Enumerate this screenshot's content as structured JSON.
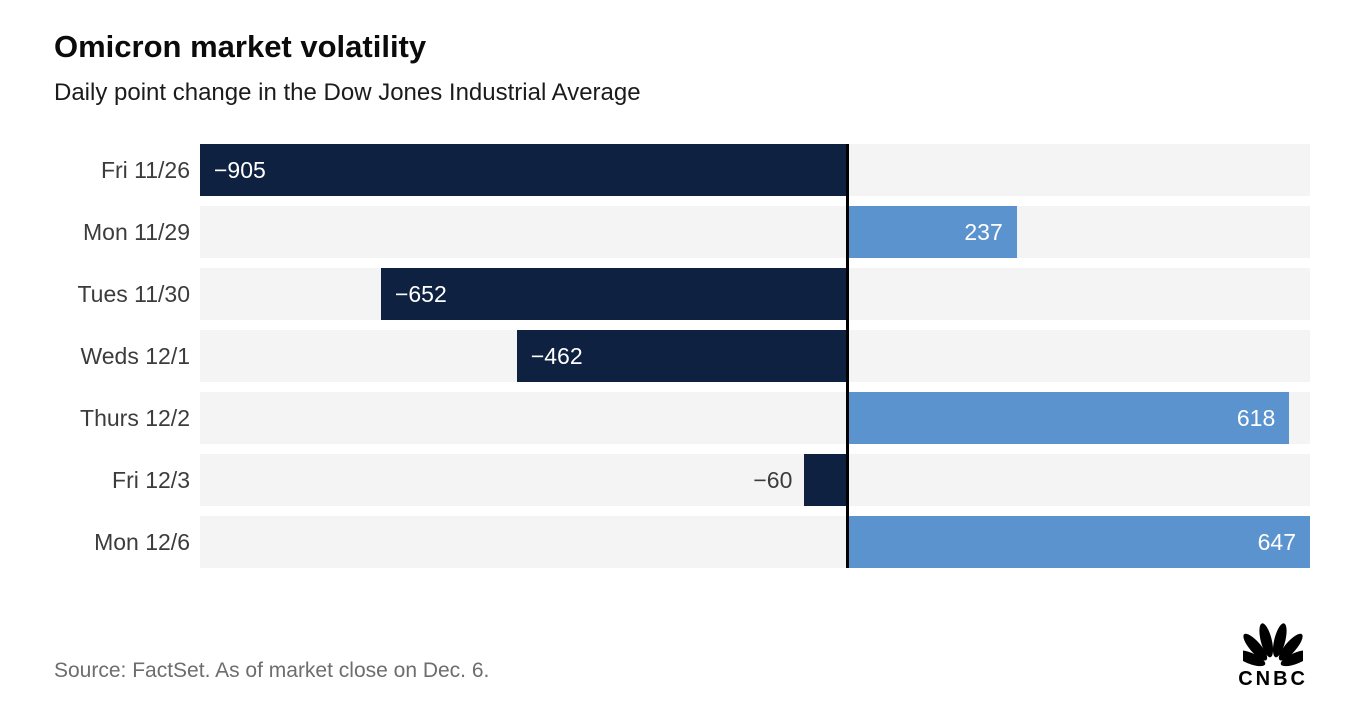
{
  "chart_data": {
    "type": "bar",
    "orientation": "horizontal",
    "title": "Omicron market volatility",
    "subtitle": "Daily point change in the Dow Jones Industrial Average",
    "source": "Source: FactSet. As of market close on Dec. 6.",
    "categories": [
      "Fri 11/26",
      "Mon 11/29",
      "Tues 11/30",
      "Weds 12/1",
      "Thurs 12/2",
      "Fri 12/3",
      "Mon 12/6"
    ],
    "values": [
      -905,
      237,
      -652,
      -462,
      618,
      -60,
      647
    ],
    "value_labels": [
      "−905",
      "237",
      "−652",
      "−462",
      "618",
      "−60",
      "647"
    ],
    "xlim": [
      -905,
      647
    ],
    "xlabel": "",
    "ylabel": "",
    "grid": false,
    "legend": false,
    "colors": {
      "negative": "#0e2141",
      "positive": "#5b93ce",
      "track": "#f4f4f4",
      "zero_line": "#000000"
    }
  },
  "branding": {
    "logo_text": "CNBC"
  }
}
